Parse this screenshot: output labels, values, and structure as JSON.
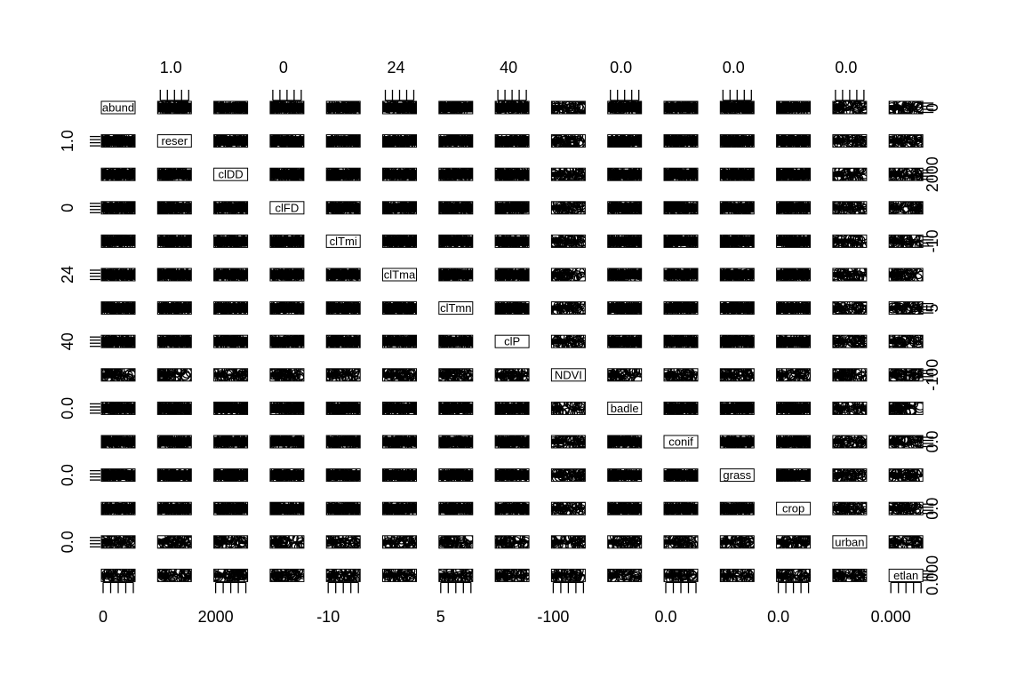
{
  "chart_data": {
    "type": "scatter",
    "kind": "pairs-scatterplot-matrix",
    "grid": false,
    "variables": [
      {
        "label": "abund",
        "range": [
          0,
          1
        ]
      },
      {
        "label": "reser",
        "range": [
          0,
          1
        ]
      },
      {
        "label": "clDD",
        "range": [
          1500,
          3500
        ]
      },
      {
        "label": "clFD",
        "range": [
          -10,
          20
        ]
      },
      {
        "label": "clTmi",
        "range": [
          -15,
          0
        ]
      },
      {
        "label": "clTma",
        "range": [
          20,
          30
        ]
      },
      {
        "label": "clTmn",
        "range": [
          0,
          10
        ]
      },
      {
        "label": "clP",
        "range": [
          30,
          50
        ]
      },
      {
        "label": "NDVI",
        "range": [
          -150,
          0
        ]
      },
      {
        "label": "badle",
        "range": [
          0,
          1
        ]
      },
      {
        "label": "conif",
        "range": [
          0,
          1
        ]
      },
      {
        "label": "grass",
        "range": [
          0,
          1
        ]
      },
      {
        "label": "crop",
        "range": [
          0,
          1
        ]
      },
      {
        "label": "urban",
        "range": [
          0,
          1
        ]
      },
      {
        "label": "etlan",
        "range": [
          0,
          0.01
        ]
      }
    ],
    "axes": {
      "top": [
        {
          "column": 1,
          "tick_label": "1.0"
        },
        {
          "column": 3,
          "tick_label": "0"
        },
        {
          "column": 5,
          "tick_label": "24"
        },
        {
          "column": 7,
          "tick_label": "40"
        },
        {
          "column": 9,
          "tick_label": "0.0"
        },
        {
          "column": 11,
          "tick_label": "0.0"
        },
        {
          "column": 13,
          "tick_label": "0.0"
        }
      ],
      "bottom": [
        {
          "column": 0,
          "tick_label": "0"
        },
        {
          "column": 2,
          "tick_label": "2000"
        },
        {
          "column": 4,
          "tick_label": "-10"
        },
        {
          "column": 6,
          "tick_label": "5"
        },
        {
          "column": 8,
          "tick_label": "-100"
        },
        {
          "column": 10,
          "tick_label": "0.0"
        },
        {
          "column": 12,
          "tick_label": "0.0"
        },
        {
          "column": 14,
          "tick_label": "0.000"
        }
      ],
      "left": [
        {
          "row": 1,
          "tick_label": "1.0"
        },
        {
          "row": 3,
          "tick_label": "0"
        },
        {
          "row": 5,
          "tick_label": "24"
        },
        {
          "row": 7,
          "tick_label": "40"
        },
        {
          "row": 9,
          "tick_label": "0.0"
        },
        {
          "row": 11,
          "tick_label": "0.0"
        },
        {
          "row": 13,
          "tick_label": "0.0"
        }
      ],
      "right": [
        {
          "row": 0,
          "tick_label": "0"
        },
        {
          "row": 2,
          "tick_label": "2000"
        },
        {
          "row": 4,
          "tick_label": "-10"
        },
        {
          "row": 6,
          "tick_label": "5"
        },
        {
          "row": 8,
          "tick_label": "-100"
        },
        {
          "row": 10,
          "tick_label": "0.0"
        },
        {
          "row": 12,
          "tick_label": "0.0"
        },
        {
          "row": 14,
          "tick_label": "0.000"
        }
      ]
    },
    "colors": {
      "ink": "#000000",
      "background": "#ffffff"
    }
  }
}
